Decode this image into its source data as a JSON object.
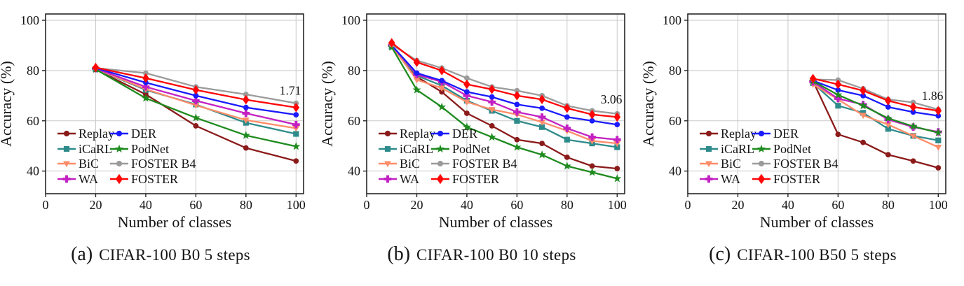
{
  "figure": {
    "background": "#ffffff",
    "grid_color": "#c9c9c9",
    "spine_color": "#262626",
    "text_color": "#141414",
    "legend": {
      "location": "lower-left",
      "columns": [
        [
          "Replay",
          "iCaRL",
          "BiC",
          "WA"
        ],
        [
          "DER",
          "PodNet",
          "FOSTER B4",
          "FOSTER"
        ]
      ]
    }
  },
  "chart_data": [
    {
      "type": "line",
      "caption_label": "(a)",
      "caption_text": "CIFAR-100 B0 5 steps",
      "xlabel": "Number of classes",
      "ylabel": "Accuracy (%)",
      "xlim": [
        0,
        103
      ],
      "ylim": [
        31,
        102.5
      ],
      "xticks": [
        0,
        20,
        40,
        60,
        80,
        100
      ],
      "yticks": [
        40,
        60,
        80,
        100
      ],
      "grid": true,
      "annotation": {
        "text": "1.71",
        "x": 102,
        "y": 72
      },
      "x": [
        20,
        40,
        60,
        80,
        100
      ],
      "series": [
        {
          "name": "Replay",
          "color": "#8B1A1A",
          "marker": "circle",
          "values": [
            80.4,
            70.5,
            58.0,
            49.2,
            44.0
          ]
        },
        {
          "name": "iCaRL",
          "color": "#2E8B8B",
          "marker": "square",
          "values": [
            80.6,
            72.3,
            66.5,
            59.2,
            54.8
          ]
        },
        {
          "name": "BiC",
          "color": "#FF8C69",
          "marker": "triangle-down",
          "values": [
            80.7,
            72.6,
            66.2,
            60.3,
            57.0
          ]
        },
        {
          "name": "WA",
          "color": "#C320C3",
          "marker": "plus",
          "values": [
            80.8,
            73.5,
            68.0,
            63.0,
            58.5
          ]
        },
        {
          "name": "DER",
          "color": "#1A1AFF",
          "marker": "circle",
          "values": [
            81.0,
            75.2,
            70.0,
            65.3,
            62.4
          ]
        },
        {
          "name": "PodNet",
          "color": "#1E8B1E",
          "marker": "star",
          "values": [
            80.5,
            69.0,
            61.2,
            54.2,
            49.8
          ]
        },
        {
          "name": "FOSTER B4",
          "color": "#9B9B9B",
          "marker": "circle",
          "values": [
            81.0,
            79.0,
            73.5,
            70.5,
            67.0
          ]
        },
        {
          "name": "FOSTER",
          "color": "#FF0505",
          "marker": "diamond",
          "values": [
            81.2,
            77.0,
            72.3,
            68.4,
            65.3
          ]
        }
      ]
    },
    {
      "type": "line",
      "caption_label": "(b)",
      "caption_text": "CIFAR-100 B0 10 steps",
      "xlabel": "Number of classes",
      "ylabel": "Accuracy (%)",
      "xlim": [
        0,
        103
      ],
      "ylim": [
        31,
        102.5
      ],
      "xticks": [
        0,
        20,
        40,
        60,
        80,
        100
      ],
      "yticks": [
        40,
        60,
        80,
        100
      ],
      "grid": true,
      "annotation": {
        "text": "3.06",
        "x": 102,
        "y": 68.5
      },
      "x": [
        10,
        20,
        30,
        40,
        50,
        60,
        70,
        80,
        90,
        100
      ],
      "series": [
        {
          "name": "Replay",
          "color": "#8B1A1A",
          "marker": "circle",
          "values": [
            90.0,
            77.5,
            71.5,
            63.0,
            58.0,
            52.5,
            51.0,
            45.5,
            42.0,
            41.0
          ]
        },
        {
          "name": "iCaRL",
          "color": "#2E8B8B",
          "marker": "square",
          "values": [
            89.5,
            78.0,
            74.0,
            68.0,
            64.0,
            60.0,
            57.5,
            52.5,
            51.0,
            49.5
          ]
        },
        {
          "name": "BiC",
          "color": "#FF8C69",
          "marker": "triangle-down",
          "values": [
            89.8,
            76.3,
            73.0,
            67.5,
            64.5,
            62.5,
            59.5,
            56.0,
            52.0,
            51.0
          ]
        },
        {
          "name": "WA",
          "color": "#C320C3",
          "marker": "plus",
          "values": [
            90.0,
            78.4,
            75.5,
            70.0,
            67.5,
            63.5,
            61.5,
            57.0,
            53.5,
            52.5
          ]
        },
        {
          "name": "DER",
          "color": "#1A1AFF",
          "marker": "circle",
          "values": [
            90.0,
            79.0,
            76.0,
            71.5,
            69.5,
            66.5,
            65.0,
            61.5,
            60.0,
            58.5
          ]
        },
        {
          "name": "PodNet",
          "color": "#1E8B1E",
          "marker": "star",
          "values": [
            89.3,
            72.3,
            65.5,
            57.5,
            53.5,
            49.5,
            46.5,
            42.0,
            39.5,
            37.0
          ]
        },
        {
          "name": "FOSTER B4",
          "color": "#9B9B9B",
          "marker": "circle",
          "values": [
            90.3,
            84.0,
            81.0,
            77.0,
            73.5,
            72.0,
            70.0,
            66.0,
            64.0,
            62.8
          ]
        },
        {
          "name": "FOSTER",
          "color": "#FF0505",
          "marker": "diamond",
          "values": [
            91.0,
            83.3,
            80.0,
            74.5,
            72.5,
            70.0,
            68.5,
            65.0,
            62.5,
            61.5
          ]
        }
      ]
    },
    {
      "type": "line",
      "caption_label": "(c)",
      "caption_text": "CIFAR-100 B50 5 steps",
      "xlabel": "Number of classes",
      "ylabel": "Accuracy (%)",
      "xlim": [
        0,
        103
      ],
      "ylim": [
        31,
        102.5
      ],
      "xticks": [
        0,
        20,
        40,
        60,
        80,
        100
      ],
      "yticks": [
        40,
        60,
        80,
        100
      ],
      "grid": true,
      "annotation": {
        "text": "1.86",
        "x": 102,
        "y": 70
      },
      "x": [
        50,
        60,
        70,
        80,
        90,
        100
      ],
      "series": [
        {
          "name": "Replay",
          "color": "#8B1A1A",
          "marker": "circle",
          "values": [
            75.8,
            54.6,
            51.4,
            46.5,
            44.0,
            41.3
          ]
        },
        {
          "name": "iCaRL",
          "color": "#2E8B8B",
          "marker": "square",
          "values": [
            75.0,
            66.0,
            63.2,
            56.8,
            54.0,
            52.2
          ]
        },
        {
          "name": "BiC",
          "color": "#FF8C69",
          "marker": "triangle-down",
          "values": [
            74.5,
            68.5,
            62.2,
            58.5,
            54.0,
            49.5
          ]
        },
        {
          "name": "WA",
          "color": "#C320C3",
          "marker": "plus",
          "values": [
            75.5,
            68.8,
            66.5,
            60.5,
            57.5,
            55.6
          ]
        },
        {
          "name": "DER",
          "color": "#1A1AFF",
          "marker": "circle",
          "values": [
            76.0,
            72.2,
            70.0,
            65.5,
            63.5,
            62.0
          ]
        },
        {
          "name": "PodNet",
          "color": "#1E8B1E",
          "marker": "star",
          "values": [
            75.8,
            70.3,
            66.0,
            61.0,
            57.8,
            55.3
          ]
        },
        {
          "name": "FOSTER B4",
          "color": "#9B9B9B",
          "marker": "circle",
          "values": [
            76.5,
            76.2,
            72.8,
            68.5,
            67.3,
            64.5
          ]
        },
        {
          "name": "FOSTER",
          "color": "#FF0505",
          "marker": "diamond",
          "values": [
            76.8,
            74.5,
            72.0,
            68.0,
            65.5,
            64.0
          ]
        }
      ]
    }
  ]
}
